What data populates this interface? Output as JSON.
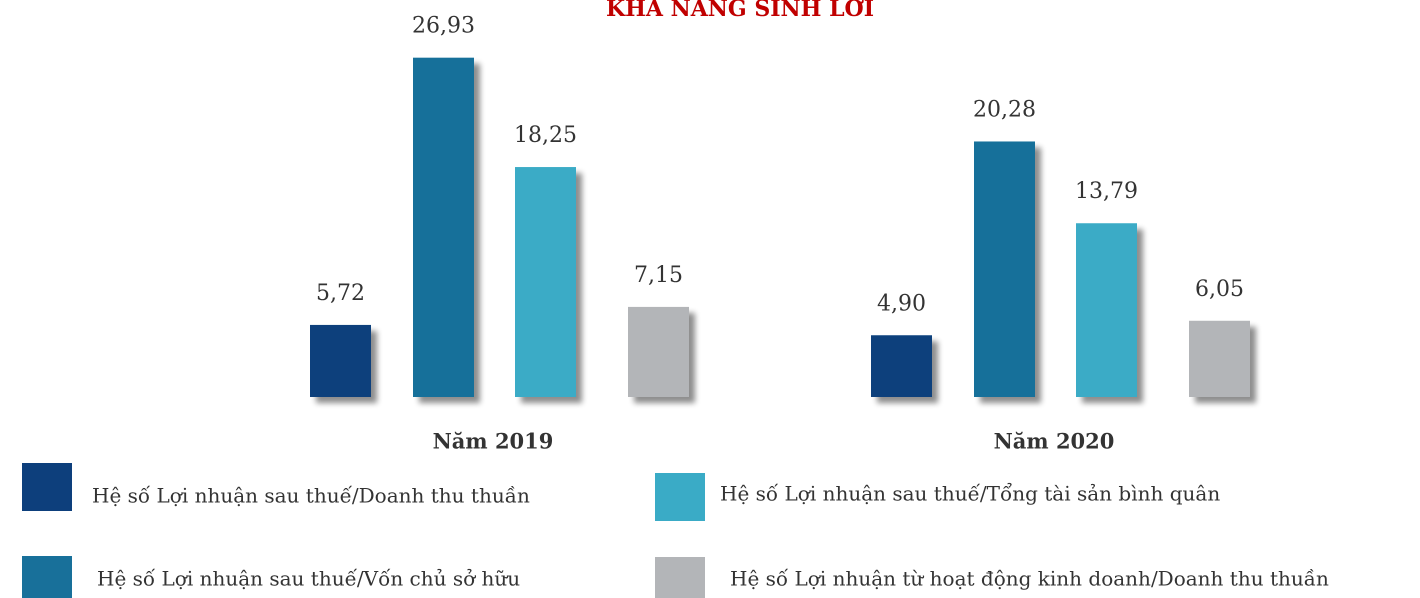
{
  "chart_data": {
    "type": "bar",
    "title": "KHẢ NĂNG SINH LỜI",
    "categories": [
      "Năm 2019",
      "Năm 2020"
    ],
    "series": [
      {
        "name": "Hệ số Lợi nhuận sau thuế/Doanh thu thuần",
        "color": "#0d3f7c",
        "values": [
          5.72,
          4.9
        ],
        "value_labels": [
          "5,72",
          "4,90"
        ]
      },
      {
        "name": "Hệ số Lợi nhuận sau thuế/Vốn chủ sở hữu",
        "color": "#18709a",
        "values": [
          26.93,
          20.28
        ],
        "value_labels": [
          "26,93",
          "20,28"
        ]
      },
      {
        "name": "Hệ số Lợi nhuận sau thuế/Tổng tài sản bình quân",
        "color": "#3aabc6",
        "values": [
          18.25,
          13.79
        ],
        "value_labels": [
          "18,25",
          "13,79"
        ]
      },
      {
        "name": "Hệ số Lợi nhuận từ hoạt động kinh doanh/Doanh thu thuần",
        "color": "#b3b5b8",
        "values": [
          7.15,
          6.05
        ],
        "value_labels": [
          "7,15",
          "6,05"
        ]
      }
    ]
  }
}
